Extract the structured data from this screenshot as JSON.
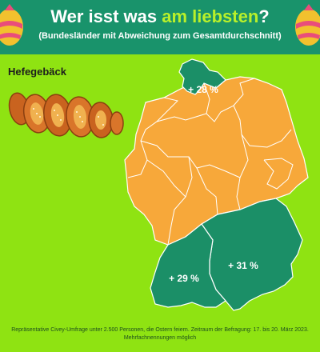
{
  "header": {
    "title_part1": "Wer isst was ",
    "title_highlight": "am liebsten",
    "title_part2": "?",
    "subtitle": "(Bundesländer mit Abweichung zum Gesamtdurchschnitt)"
  },
  "category": "Hefegebäck",
  "map": {
    "regions": [
      {
        "name": "Schleswig-Holstein",
        "value": "+ 28 %",
        "highlight": true
      },
      {
        "name": "Baden-Württemberg",
        "value": "+ 29 %",
        "highlight": true
      },
      {
        "name": "Bayern",
        "value": "+ 31 %",
        "highlight": true
      }
    ],
    "colors": {
      "background": "#8fe312",
      "header": "#19936b",
      "highlight": "#1b8f67",
      "base": "#f7a83a",
      "border": "#ffffff",
      "title_accent": "#b9f02a"
    }
  },
  "footer": {
    "line1": "Repräsentative Civey-Umfrage unter 2.500 Personen, die Ostern feiern. Zeitraum der Befragung: 17. bis 20. März 2023.",
    "line2": "Mehrfachnennungen möglich"
  }
}
